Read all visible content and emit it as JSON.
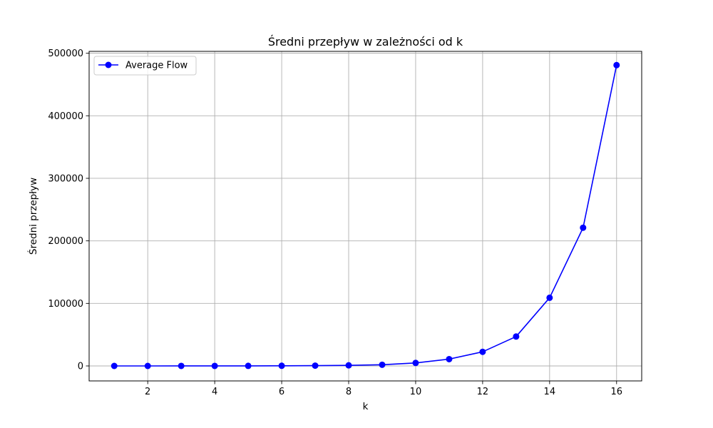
{
  "chart_data": {
    "type": "line",
    "title": "Średni przepływ w zależności od k",
    "xlabel": "k",
    "ylabel": "Średni przepływ",
    "x": [
      1,
      2,
      3,
      4,
      5,
      6,
      7,
      8,
      9,
      10,
      11,
      12,
      13,
      14,
      15,
      16
    ],
    "series": [
      {
        "name": "Average Flow",
        "color": "#0000ff",
        "marker": "circle",
        "values": [
          2,
          8,
          28,
          60,
          110,
          230,
          470,
          940,
          1900,
          4800,
          10900,
          22600,
          47000,
          109000,
          221000,
          481000
        ]
      }
    ],
    "xlim": [
      0.25,
      16.75
    ],
    "ylim": [
      -23950,
      503000
    ],
    "xticks": [
      2,
      4,
      6,
      8,
      10,
      12,
      14,
      16
    ],
    "yticks": [
      0,
      100000,
      200000,
      300000,
      400000,
      500000
    ],
    "xtick_labels": [
      "2",
      "4",
      "6",
      "8",
      "10",
      "12",
      "14",
      "16"
    ],
    "ytick_labels": [
      "0",
      "100000",
      "200000",
      "300000",
      "400000",
      "500000"
    ],
    "grid": true,
    "grid_color": "#b0b0b0",
    "legend_position": "upper-left"
  }
}
